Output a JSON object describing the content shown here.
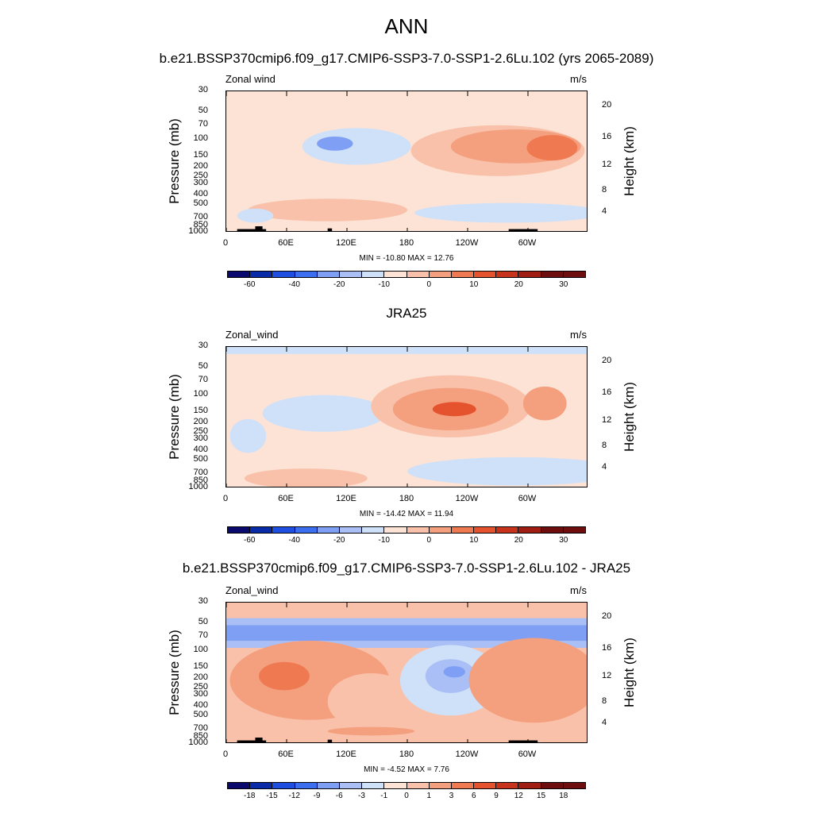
{
  "figure": {
    "title": "ANN"
  },
  "colors": {
    "palette": [
      "#0a0a6e",
      "#0a2ba8",
      "#1f4fe0",
      "#3c6ef0",
      "#7f9ff5",
      "#a9bff5",
      "#cfe1f8",
      "#fde3d6",
      "#f9c1a9",
      "#f49f7e",
      "#ef7a52",
      "#e4532e",
      "#c8331c",
      "#a01d14",
      "#6e0d0d"
    ]
  },
  "panels": [
    {
      "title": "b.e21.BSSP370cmip6.f09_g17.CMIP6-SSP3-7.0-SSP1-2.6Lu.102 (yrs 2065-2089)",
      "variable": "Zonal wind",
      "units": "m/s",
      "stats": "MIN = -10.80  MAX =  12.76",
      "colorbar_labels": [
        "-60",
        "-40",
        "-20",
        "-10",
        "0",
        "10",
        "20",
        "30"
      ]
    },
    {
      "title": "JRA25",
      "variable": "Zonal_wind",
      "units": "m/s",
      "stats": "MIN = -14.42  MAX =  11.94",
      "colorbar_labels": [
        "-60",
        "-40",
        "-20",
        "-10",
        "0",
        "10",
        "20",
        "30"
      ]
    },
    {
      "title": "b.e21.BSSP370cmip6.f09_g17.CMIP6-SSP3-7.0-SSP1-2.6Lu.102 - JRA25",
      "variable": "Zonal_wind",
      "units": "m/s",
      "stats": "MIN =  -4.52  MAX =   7.76",
      "colorbar_labels": [
        "-18",
        "-15",
        "-12",
        "-9",
        "-6",
        "-3",
        "-1",
        "0",
        "1",
        "3",
        "6",
        "9",
        "12",
        "15",
        "18"
      ]
    }
  ],
  "chart_data": {
    "type": "heatmap",
    "x_ticks": [
      "0",
      "60E",
      "120E",
      "180",
      "120W",
      "60W"
    ],
    "x_tick_lon": [
      0,
      60,
      120,
      180,
      240,
      300
    ],
    "xlim": [
      0,
      360
    ],
    "y_label": "Pressure (mb)",
    "y_ticks": [
      "30",
      "50",
      "70",
      "100",
      "150",
      "200",
      "250",
      "300",
      "400",
      "500",
      "700",
      "850",
      "1000"
    ],
    "y_tick_values": [
      30,
      50,
      70,
      100,
      150,
      200,
      250,
      300,
      400,
      500,
      700,
      850,
      1000
    ],
    "y_scale": "log",
    "ylim": [
      1000,
      30
    ],
    "y2_label": "Height (km)",
    "y2_ticks": [
      "20",
      "16",
      "12",
      "8",
      "4"
    ],
    "y2_tick_values": [
      20,
      16,
      12,
      8,
      4
    ],
    "grid": false
  }
}
